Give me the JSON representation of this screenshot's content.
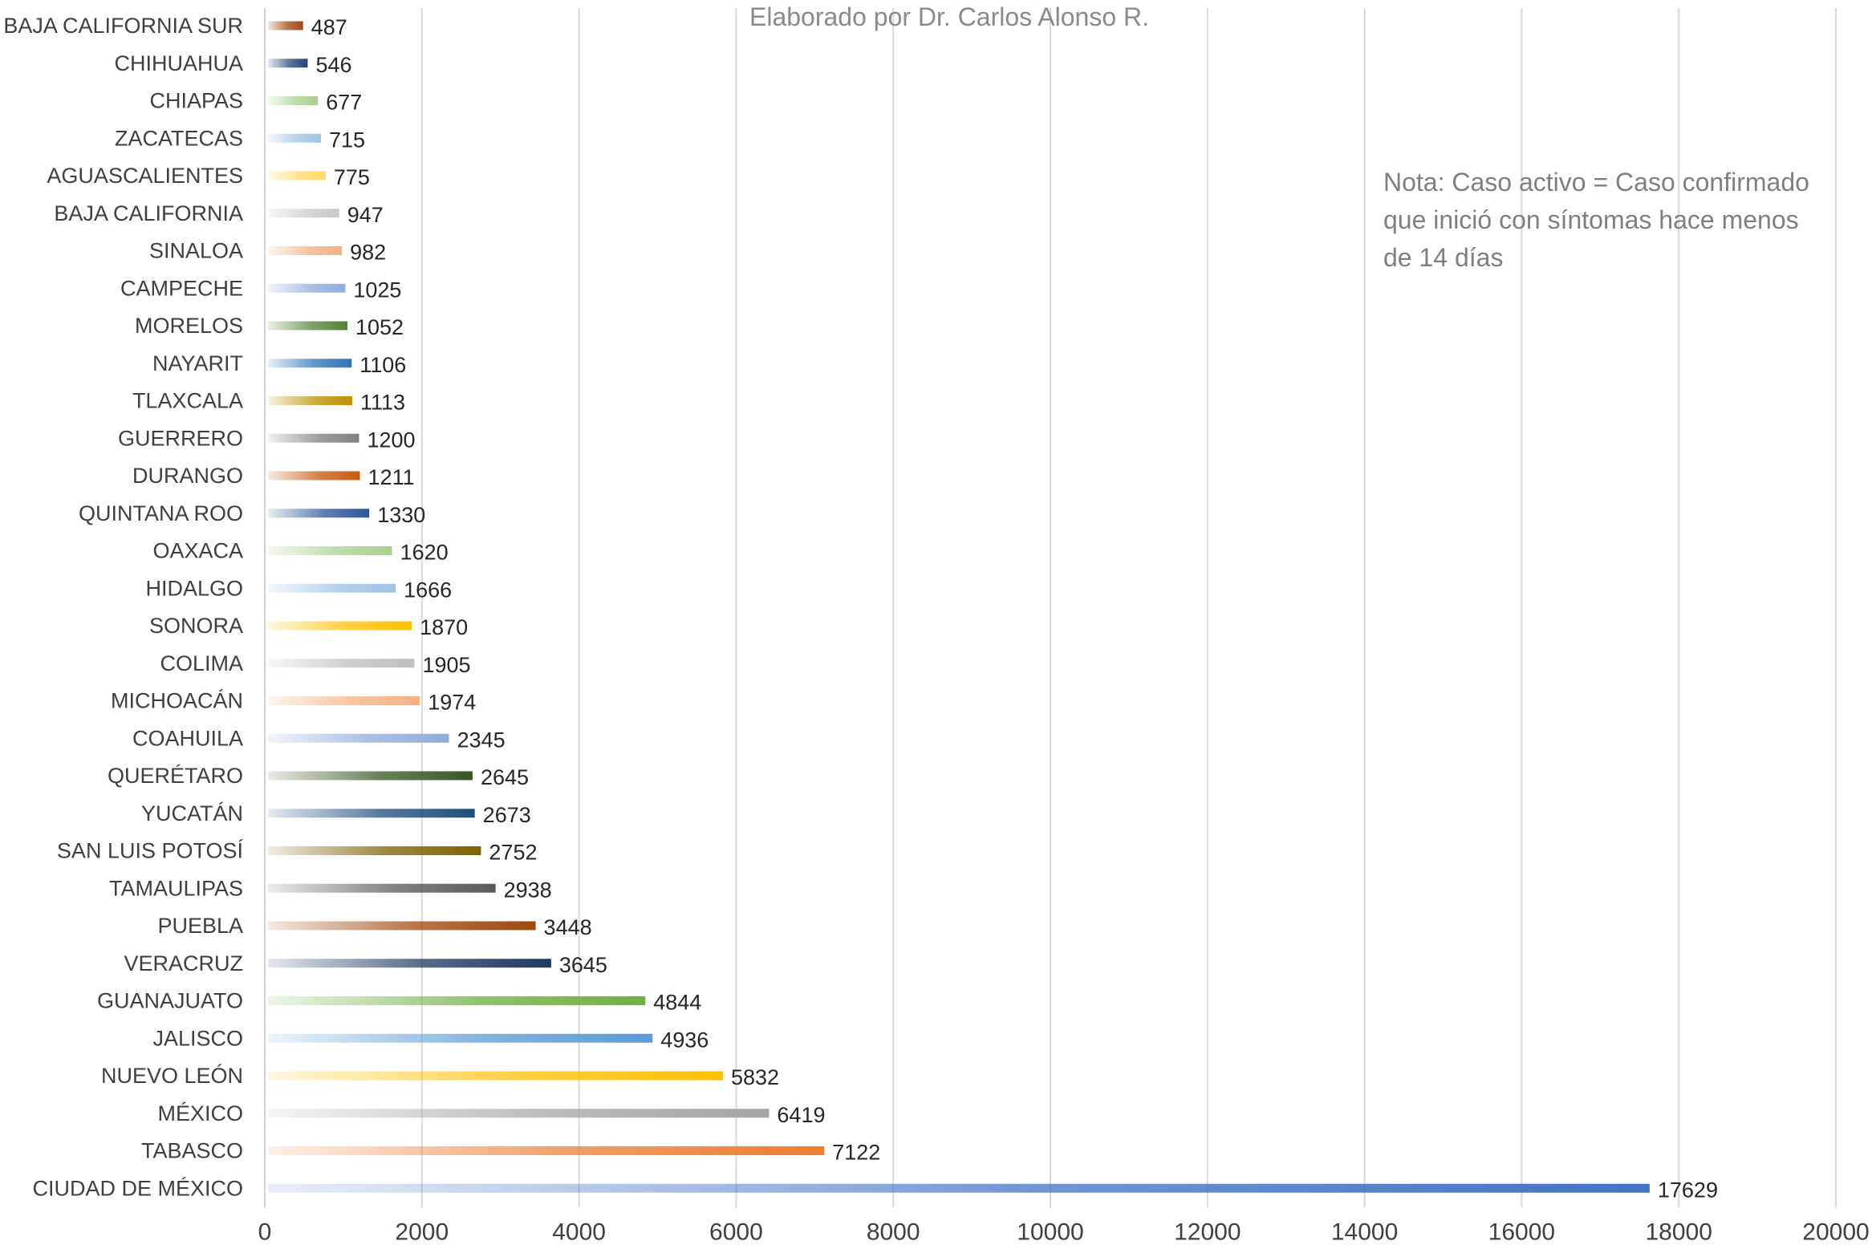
{
  "chart_data": {
    "type": "bar",
    "orientation": "horizontal",
    "title": "",
    "credit": "Elaborado por Dr. Carlos Alonso R.",
    "note_lines": [
      "Nota: Caso activo = Caso confirmado",
      "que inició con síntomas hace menos",
      "de 14 días"
    ],
    "xlabel": "",
    "ylabel": "",
    "xlim": [
      0,
      20000
    ],
    "xticks": [
      0,
      2000,
      4000,
      6000,
      8000,
      10000,
      12000,
      14000,
      16000,
      18000,
      20000
    ],
    "grid": "vertical",
    "legend": "none",
    "categories": [
      "BAJA CALIFORNIA SUR",
      "CHIHUAHUA",
      "CHIAPAS",
      "ZACATECAS",
      "AGUASCALIENTES",
      "BAJA CALIFORNIA",
      "SINALOA",
      "CAMPECHE",
      "MORELOS",
      "NAYARIT",
      "TLAXCALA",
      "GUERRERO",
      "DURANGO",
      "QUINTANA ROO",
      "OAXACA",
      "HIDALGO",
      "SONORA",
      "COLIMA",
      "MICHOACÁN",
      "COAHUILA",
      "QUERÉTARO",
      "YUCATÁN",
      "SAN LUIS POTOSÍ",
      "TAMAULIPAS",
      "PUEBLA",
      "VERACRUZ",
      "GUANAJUATO",
      "JALISCO",
      "NUEVO LEÓN",
      "MÉXICO",
      "TABASCO",
      "CIUDAD DE MÉXICO"
    ],
    "values": [
      487,
      546,
      677,
      715,
      775,
      947,
      982,
      1025,
      1052,
      1106,
      1113,
      1200,
      1211,
      1330,
      1620,
      1666,
      1870,
      1905,
      1974,
      2345,
      2645,
      2673,
      2752,
      2938,
      3448,
      3645,
      4844,
      4936,
      5832,
      6419,
      7122,
      17629
    ],
    "bar_colors": [
      "#9e480e",
      "#264478",
      "#a9d18e",
      "#9dc3e6",
      "#ffd966",
      "#c9c9c9",
      "#f4b183",
      "#8faadc",
      "#548235",
      "#2e75b6",
      "#bf9000",
      "#7f7f7f",
      "#c55a11",
      "#2f5597",
      "#a9d18e",
      "#9dc3e6",
      "#ffc000",
      "#bfbfbf",
      "#f4b183",
      "#8faadc",
      "#375623",
      "#1f4e79",
      "#7f6000",
      "#595959",
      "#9e480e",
      "#203864",
      "#70ad47",
      "#5b9bd5",
      "#ffc000",
      "#a5a5a5",
      "#ed7d31",
      "#4472c4"
    ]
  }
}
